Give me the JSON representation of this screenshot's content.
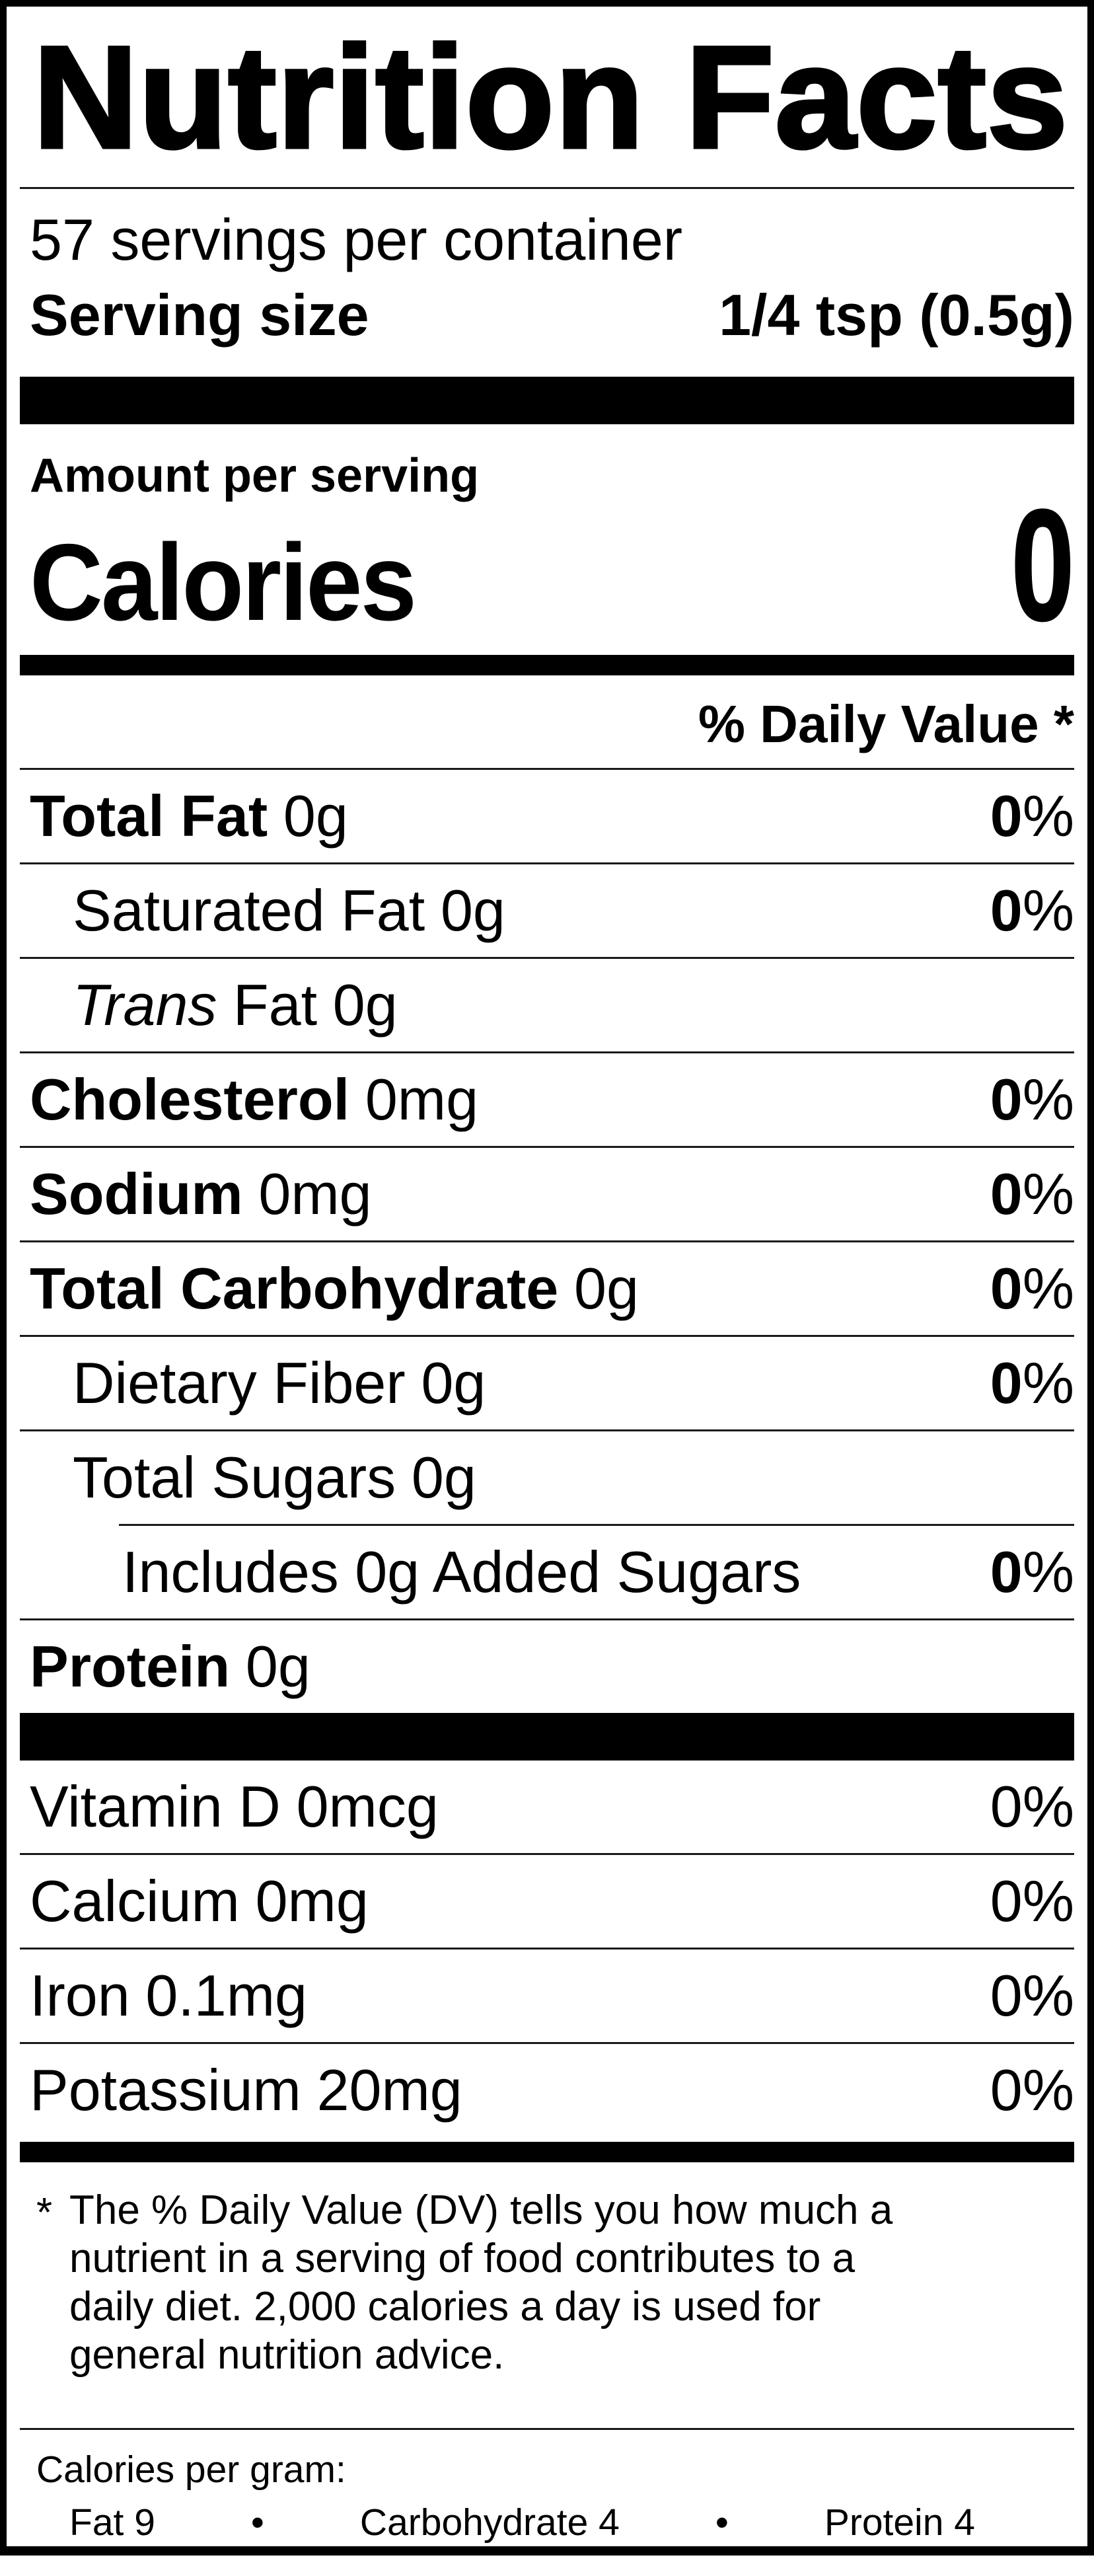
{
  "label": {
    "title": "Nutrition Facts",
    "servings_per_container": "57 servings per container",
    "serving_size_label": "Serving size",
    "serving_size_value": "1/4 tsp (0.5g)",
    "amount_per_serving": "Amount per serving",
    "calories_label": "Calories",
    "calories_value": "0",
    "daily_value_header": "% Daily Value *",
    "rows": [
      {
        "bold": "Total Fat",
        "italic": "",
        "regular": "",
        "amount": "0g",
        "dv": "0",
        "pct": "%",
        "indent": 0,
        "divider_before": "none"
      },
      {
        "bold": "",
        "italic": "",
        "regular": "Saturated Fat",
        "amount": "0g",
        "dv": "0",
        "pct": "%",
        "indent": 1,
        "divider_before": "full"
      },
      {
        "bold": "",
        "italic": "Trans",
        "regular": " Fat",
        "amount": "0g",
        "dv": "",
        "pct": "",
        "indent": 1,
        "divider_before": "full"
      },
      {
        "bold": "Cholesterol",
        "italic": "",
        "regular": "",
        "amount": "0mg",
        "dv": "0",
        "pct": "%",
        "indent": 0,
        "divider_before": "full"
      },
      {
        "bold": "Sodium",
        "italic": "",
        "regular": "",
        "amount": "0mg",
        "dv": "0",
        "pct": "%",
        "indent": 0,
        "divider_before": "full"
      },
      {
        "bold": "Total Carbohydrate",
        "italic": "",
        "regular": "",
        "amount": "0g",
        "dv": "0",
        "pct": "%",
        "indent": 0,
        "divider_before": "full"
      },
      {
        "bold": "",
        "italic": "",
        "regular": "Dietary Fiber",
        "amount": "0g",
        "dv": "0",
        "pct": "%",
        "indent": 1,
        "divider_before": "full"
      },
      {
        "bold": "",
        "italic": "",
        "regular": "Total Sugars",
        "amount": "0g",
        "dv": "",
        "pct": "",
        "indent": 1,
        "divider_before": "full"
      },
      {
        "bold": "",
        "italic": "",
        "regular": "Includes 0g Added Sugars",
        "amount": "",
        "dv": "0",
        "pct": "%",
        "indent": 2,
        "divider_before": "indent"
      },
      {
        "bold": "Protein",
        "italic": "",
        "regular": "",
        "amount": "0g",
        "dv": "",
        "pct": "",
        "indent": 0,
        "divider_before": "full"
      }
    ],
    "vitamins": [
      {
        "name": "Vitamin D",
        "amount": "0mcg",
        "dv": "0",
        "pct": "%",
        "divider_before": "none"
      },
      {
        "name": "Calcium",
        "amount": "0mg",
        "dv": "0",
        "pct": "%",
        "divider_before": "full"
      },
      {
        "name": "Iron",
        "amount": "0.1mg",
        "dv": "0",
        "pct": "%",
        "divider_before": "full"
      },
      {
        "name": "Potassium",
        "amount": "20mg",
        "dv": "0",
        "pct": "%",
        "divider_before": "full"
      }
    ],
    "footnote_marker": "*",
    "footnote_lines": [
      "The % Daily Value (DV) tells you how much a",
      "nutrient in a serving of food contributes to a",
      "daily diet. 2,000 calories a day is used for",
      "general nutrition advice."
    ],
    "calories_per_gram_label": "Calories per gram:",
    "bullet": "•",
    "calories_per_gram_items": [
      "Fat 9",
      "Carbohydrate 4",
      "Protein 4"
    ],
    "colors": {
      "ink": "#000000",
      "paper": "#ffffff"
    }
  }
}
